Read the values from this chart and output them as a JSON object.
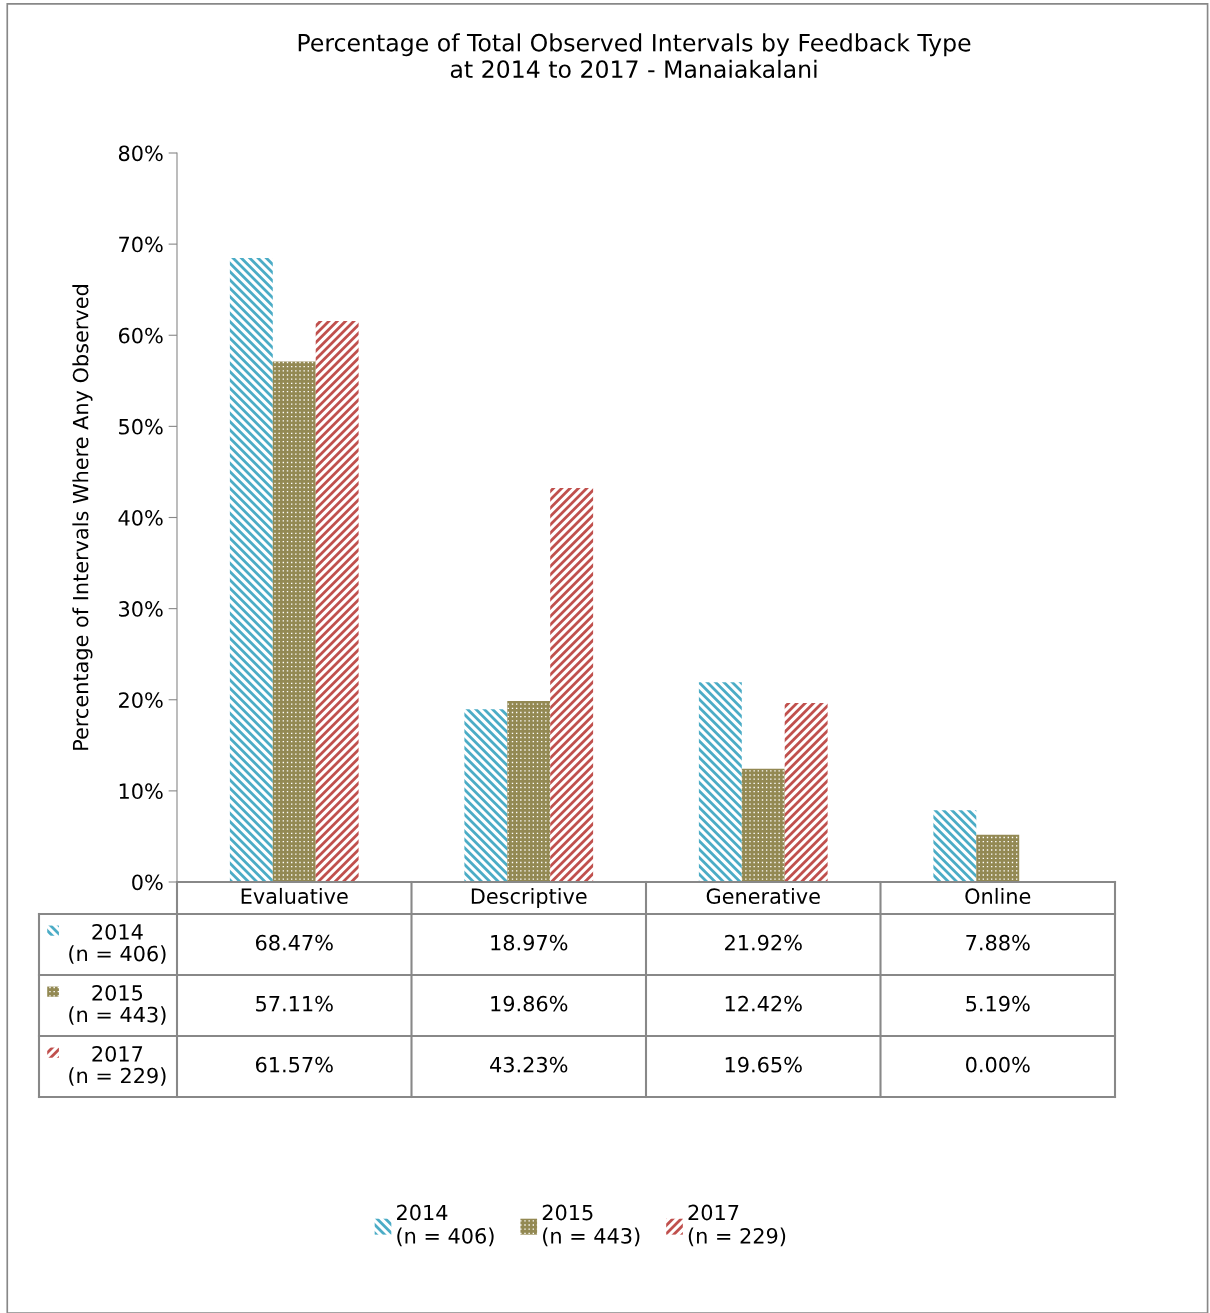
{
  "chart_data": {
    "type": "bar",
    "title": "Percentage of Total Observed Intervals by Feedback Type\nat 2014 to 2017 - Manaiakalani",
    "ylabel": "Percentage of Intervals Where Any Observed",
    "categories": [
      "Evaluative",
      "Descriptive",
      "Generative",
      "Online"
    ],
    "series": [
      {
        "name": "2014\n(n = 406)",
        "color": "#4bacc6",
        "values": [
          68.47,
          18.97,
          21.92,
          7.88
        ],
        "value_labels": [
          "68.47%",
          "18.97%",
          "21.92%",
          "7.88%"
        ]
      },
      {
        "name": "2015\n(n = 443)",
        "color": "#938953",
        "values": [
          57.11,
          19.86,
          12.42,
          5.19
        ],
        "value_labels": [
          "57.11%",
          "19.86%",
          "12.42%",
          "5.19%"
        ]
      },
      {
        "name": "2017\n(n = 229)",
        "color": "#c0504d",
        "values": [
          61.57,
          43.23,
          19.65,
          0.0
        ],
        "value_labels": [
          "61.57%",
          "43.23%",
          "19.65%",
          "0.00%"
        ]
      }
    ],
    "ylim": [
      0,
      80
    ],
    "yticks": [
      {
        "value": 0,
        "label": "0%"
      },
      {
        "value": 10,
        "label": "10%"
      },
      {
        "value": 20,
        "label": "20%"
      },
      {
        "value": 30,
        "label": "30%"
      },
      {
        "value": 40,
        "label": "40%"
      },
      {
        "value": 50,
        "label": "50%"
      },
      {
        "value": 60,
        "label": "60%"
      },
      {
        "value": 70,
        "label": "70%"
      },
      {
        "value": 80,
        "label": "80%"
      }
    ],
    "grid": false,
    "legend": "bottom"
  }
}
